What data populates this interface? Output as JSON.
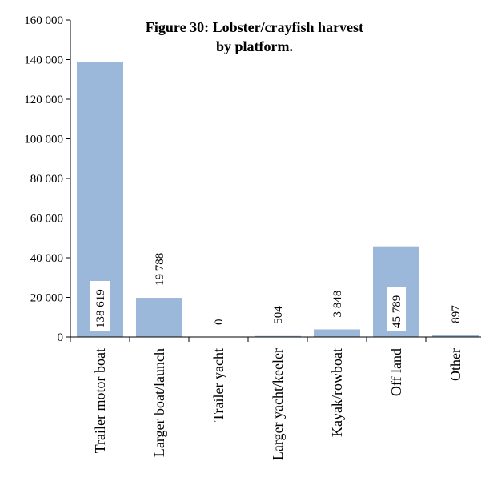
{
  "chart_data": {
    "type": "bar",
    "title": "Figure 30: Lobster/crayfish harvest by platform.",
    "title_lines": [
      "Figure 30: Lobster/crayfish harvest",
      "by platform."
    ],
    "categories": [
      "Trailer motor boat",
      "Larger boat/launch",
      "Trailer yacht",
      "Larger yacht/keeler",
      "Kayak/rowboat",
      "Off land",
      "Other"
    ],
    "values": [
      138619,
      19788,
      0,
      504,
      3848,
      45789,
      897
    ],
    "data_labels": [
      "138 619",
      "19 788",
      "0",
      "504",
      "3 848",
      "45 789",
      "897"
    ],
    "y_ticks": [
      0,
      20000,
      40000,
      60000,
      80000,
      100000,
      120000,
      140000,
      160000
    ],
    "y_tick_labels": [
      "0",
      "20 000",
      "40 000",
      "60 000",
      "80 000",
      "100 000",
      "120 000",
      "140 000",
      "160 000"
    ],
    "ylim": [
      0,
      160000
    ],
    "xlabel": "",
    "ylabel": "",
    "grid": false,
    "legend": "none",
    "bar_color": "#9bb7d9",
    "axis_color": "#000000"
  }
}
